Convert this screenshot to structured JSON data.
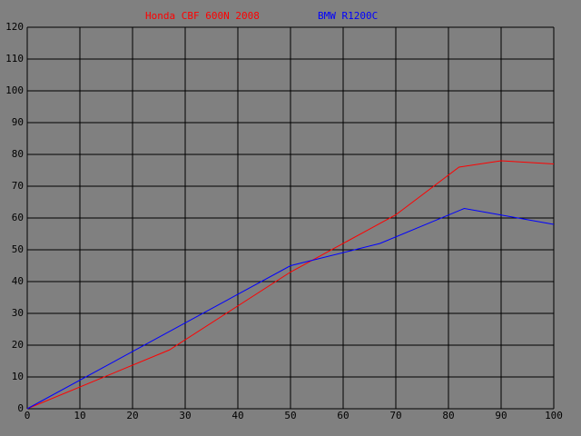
{
  "chart_data": {
    "type": "line",
    "series": [
      {
        "name": "Honda CBF 600N 2008",
        "color": "#ff0000",
        "x": [
          0,
          27,
          50,
          70,
          82,
          90,
          100
        ],
        "values": [
          0,
          18.5,
          43,
          61,
          76,
          78,
          77
        ]
      },
      {
        "name": "BMW R1200C",
        "color": "#0000ff",
        "x": [
          0,
          50,
          67,
          83,
          100
        ],
        "values": [
          0,
          45,
          52,
          63,
          58
        ]
      }
    ],
    "xlim": [
      0,
      100
    ],
    "xticks": [
      0,
      10,
      20,
      30,
      40,
      50,
      60,
      70,
      80,
      90,
      100
    ],
    "ylim": [
      0,
      120
    ],
    "yticks": [
      0,
      10,
      20,
      30,
      40,
      50,
      60,
      70,
      80,
      90,
      100,
      110,
      120
    ],
    "grid": true
  }
}
